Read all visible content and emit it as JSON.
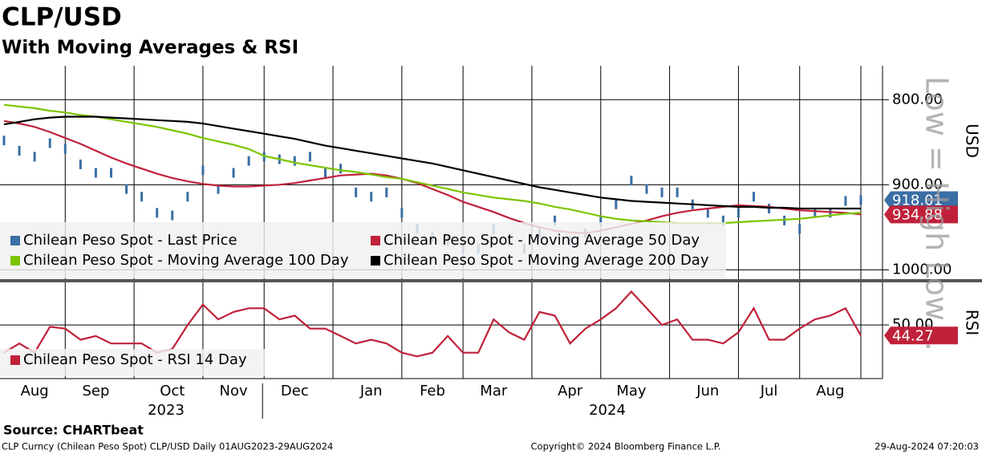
{
  "title": "CLP/USD",
  "subtitle": "With Moving Averages & RSI",
  "x_axis": {
    "categories": [
      null,
      null,
      "Aug",
      null,
      null,
      null,
      "Sep",
      null,
      null,
      null,
      null,
      "Oct",
      null,
      null,
      null,
      "Nov",
      null,
      null,
      null,
      "Dec",
      null,
      null,
      null,
      null,
      "Jan",
      null,
      null,
      null,
      "Feb",
      null,
      null,
      null,
      "Mar",
      null,
      null,
      null,
      null,
      "Apr",
      null,
      null,
      null,
      "May",
      null,
      null,
      null,
      null,
      "Jun",
      null,
      null,
      null,
      "Jul",
      null,
      null,
      null,
      "Aug",
      null,
      null
    ],
    "years": [
      "2023",
      "2024"
    ]
  },
  "chart_data": [
    {
      "type": "line",
      "y_label": "USD",
      "inverted": true,
      "ylim": [
        762,
        1010
      ],
      "yticks": [
        {
          "value": 800,
          "label": "800.00"
        },
        {
          "value": 900,
          "label": "900.00"
        },
        {
          "value": 1000,
          "label": "1000.00"
        }
      ],
      "grid": true,
      "watermark": "Low = High Low…",
      "series": [
        {
          "name": "Chilean Peso Spot - Last Price",
          "color": "#3a6ea5",
          "style": "bars",
          "values": [
            848,
            860,
            867,
            851,
            858,
            876,
            886,
            886,
            905,
            914,
            933,
            936,
            914,
            883,
            905,
            886,
            872,
            867,
            870,
            872,
            867,
            886,
            881,
            909,
            914,
            909,
            933,
            952,
            961,
            966,
            975,
            975,
            952,
            966,
            975,
            957,
            942,
            966,
            957,
            942,
            923,
            895,
            905,
            909,
            909,
            923,
            933,
            942,
            933,
            914,
            928,
            942,
            952,
            933,
            933,
            919,
            918.01
          ]
        },
        {
          "name": "Chilean Peso Spot - Moving Average 50 Day",
          "color": "#c0213a",
          "style": "line",
          "values": [
            825,
            828,
            832,
            838,
            845,
            852,
            860,
            868,
            875,
            881,
            887,
            892,
            896,
            899,
            901,
            902,
            902,
            901,
            900,
            898,
            895,
            892,
            889,
            888,
            887,
            889,
            893,
            898,
            905,
            912,
            920,
            926,
            932,
            939,
            945,
            950,
            954,
            956,
            957,
            954,
            950,
            946,
            942,
            937,
            933,
            930,
            928,
            926,
            924,
            925,
            926,
            928,
            930,
            931,
            932,
            933,
            934.88
          ]
        },
        {
          "name": "Chilean Peso Spot - Moving Average 100 Day",
          "color": "#7dc400",
          "style": "line",
          "values": [
            806,
            808,
            810,
            813,
            815,
            818,
            820,
            823,
            826,
            829,
            832,
            836,
            840,
            845,
            849,
            853,
            858,
            866,
            870,
            874,
            877,
            880,
            883,
            885,
            888,
            891,
            893,
            897,
            901,
            905,
            909,
            912,
            915,
            917,
            919,
            922,
            926,
            929,
            933,
            937,
            940,
            942,
            943,
            944,
            945,
            945,
            945,
            945,
            944,
            943,
            942,
            941,
            940,
            938,
            936,
            934,
            933
          ]
        },
        {
          "name": "Chilean Peso Spot - Moving Average 200 Day",
          "color": "#000000",
          "style": "line",
          "values": [
            829,
            826,
            823,
            821,
            820,
            820,
            820,
            821,
            822,
            823,
            824,
            825,
            826,
            828,
            831,
            834,
            837,
            840,
            843,
            846,
            850,
            854,
            857,
            860,
            863,
            866,
            869,
            872,
            875,
            879,
            883,
            887,
            891,
            895,
            899,
            903,
            906,
            909,
            912,
            915,
            917,
            919,
            920,
            921,
            922,
            923,
            924,
            925,
            926,
            926,
            927,
            927,
            928,
            928,
            928,
            928,
            928
          ]
        }
      ],
      "value_tags": [
        0,
        1
      ]
    },
    {
      "type": "line",
      "y_label": "RSI",
      "inverted": false,
      "ylim": [
        21,
        73
      ],
      "yticks": [
        {
          "value": 50,
          "label": "50.00"
        }
      ],
      "grid": true,
      "series": [
        {
          "name": "Chilean Peso Spot - RSI 14 Day",
          "color": "#c0213a",
          "style": "line",
          "values": [
            35,
            40,
            35,
            49,
            48,
            42,
            44,
            40,
            40,
            40,
            35,
            37,
            50,
            61,
            53,
            57,
            59,
            59,
            53,
            55,
            48,
            48,
            44,
            40,
            42,
            40,
            35,
            33,
            35,
            44,
            35,
            35,
            53,
            46,
            42,
            57,
            55,
            40,
            48,
            53,
            59,
            68,
            59,
            50,
            53,
            42,
            42,
            40,
            46,
            59,
            42,
            42,
            48,
            53,
            55,
            59,
            44.27
          ]
        }
      ],
      "value_tags": [
        0
      ]
    }
  ],
  "source": "Source: CHARTbeat",
  "footer": {
    "left": "CLP Curncy (Chilean Peso Spot) CLP/USD  Daily 01AUG2023-29AUG2024",
    "center": "Copyright© 2024 Bloomberg Finance L.P.",
    "right": "29-Aug-2024 07:20:03"
  }
}
